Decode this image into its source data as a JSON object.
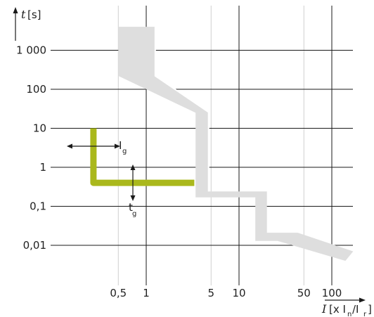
{
  "chart_data": {
    "type": "area",
    "title": "",
    "y_axis": {
      "symbol": "t",
      "unit": "[s]",
      "scale": "log",
      "ylim": [
        0.003,
        3000
      ],
      "tick_labels": [
        "1 000",
        "100",
        "10",
        "1",
        "0,1",
        "0,01"
      ],
      "tick_values": [
        1000,
        100,
        10,
        1,
        0.1,
        0.01
      ]
    },
    "x_axis": {
      "symbol": "I",
      "unit_open": "[x I",
      "unit_sub_n": "n",
      "unit_slash": "/I",
      "unit_sub_r": "r",
      "unit_close": "]",
      "scale": "log",
      "xlim": [
        0.17,
        220
      ],
      "tick_labels": [
        "0,5",
        "1",
        "5",
        "10",
        "50",
        "100"
      ],
      "tick_values": [
        0.5,
        1,
        5,
        10,
        50,
        100
      ]
    },
    "grid": true,
    "grid_major_x": [
      1,
      10,
      100
    ],
    "grid_minor_x": [
      0.5,
      5,
      50
    ],
    "series": [
      {
        "color": "#dedede",
        "points": [
          [
            0.5,
            4000
          ],
          [
            0.5,
            220
          ],
          [
            3.4,
            25
          ],
          [
            3.4,
            0.17
          ],
          [
            15,
            0.17
          ],
          [
            15,
            0.013
          ],
          [
            26,
            0.013
          ],
          [
            140,
            0.004
          ],
          [
            170,
            0.007
          ],
          [
            43,
            0.021
          ],
          [
            20,
            0.021
          ],
          [
            20,
            0.24
          ],
          [
            4.7,
            0.24
          ],
          [
            4.7,
            26
          ],
          [
            1.25,
            220
          ],
          [
            1.25,
            4000
          ]
        ]
      },
      {
        "color": "#dedede",
        "points": [
          [
            1.25,
            4000
          ],
          [
            1.25,
            220
          ],
          [
            4.7,
            26
          ],
          [
            4.7,
            0.24
          ]
        ]
      },
      {
        "color": "#aab81c",
        "points": [
          [
            0.27,
            10
          ],
          [
            0.27,
            0.4
          ],
          [
            3.3,
            0.4
          ]
        ]
      }
    ],
    "annotations": [
      {
        "main": "I",
        "sub": "g",
        "at": [
          0.32,
          1.9
        ]
      },
      {
        "main": "t",
        "sub": "g",
        "at": [
          0.62,
          0.07
        ]
      }
    ]
  }
}
